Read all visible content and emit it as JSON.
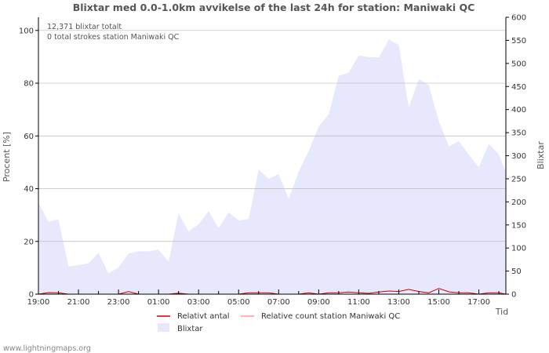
{
  "chart_data": {
    "type": "area",
    "title": "Blixtar med 0.0-1.0km avvikelse of the last 24h for station: Maniwaki QC",
    "ylabel_left": "Procent   [%]",
    "ylabel_right": "Blixtar",
    "xlabel": "Tid",
    "ylim_left": [
      0,
      105
    ],
    "ylim_right": [
      0,
      600
    ],
    "yticks_left": [
      0,
      20,
      40,
      60,
      80,
      100
    ],
    "yticks_right": [
      0,
      50,
      100,
      150,
      200,
      250,
      300,
      350,
      400,
      450,
      500,
      550,
      600
    ],
    "x_range_hours": [
      0,
      23.35
    ],
    "xticks": [
      {
        "h": 0,
        "label": "19:00"
      },
      {
        "h": 2,
        "label": "21:00"
      },
      {
        "h": 4,
        "label": "23:00"
      },
      {
        "h": 6,
        "label": "01:00"
      },
      {
        "h": 8,
        "label": "03:00"
      },
      {
        "h": 10,
        "label": "05:00"
      },
      {
        "h": 12,
        "label": "07:00"
      },
      {
        "h": 14,
        "label": "09:00"
      },
      {
        "h": 16,
        "label": "11:00"
      },
      {
        "h": 18,
        "label": "13:00"
      },
      {
        "h": 20,
        "label": "15:00"
      },
      {
        "h": 22,
        "label": "17:00"
      }
    ],
    "annotations": [
      "12,371 blixtar totalt",
      "0 total strokes station Maniwaki QC"
    ],
    "series": [
      {
        "name": "Blixtar",
        "axis": "right",
        "color": "#e8e8fc",
        "points": [
          [
            0,
            198
          ],
          [
            0.5,
            157
          ],
          [
            1,
            162
          ],
          [
            1.5,
            60
          ],
          [
            2,
            63
          ],
          [
            2.5,
            67
          ],
          [
            3,
            90
          ],
          [
            3.5,
            45
          ],
          [
            4,
            58
          ],
          [
            4.5,
            88
          ],
          [
            5,
            93
          ],
          [
            5.5,
            93
          ],
          [
            6,
            96
          ],
          [
            6.5,
            70
          ],
          [
            7,
            175
          ],
          [
            7.5,
            136
          ],
          [
            8,
            152
          ],
          [
            8.5,
            180
          ],
          [
            9,
            143
          ],
          [
            9.5,
            177
          ],
          [
            10,
            160
          ],
          [
            10.5,
            163
          ],
          [
            11,
            270
          ],
          [
            11.5,
            250
          ],
          [
            12,
            260
          ],
          [
            12.5,
            207
          ],
          [
            13,
            265
          ],
          [
            13.5,
            310
          ],
          [
            14,
            363
          ],
          [
            14.5,
            390
          ],
          [
            15,
            473
          ],
          [
            15.5,
            480
          ],
          [
            16,
            517
          ],
          [
            16.5,
            514
          ],
          [
            17,
            513
          ],
          [
            17.5,
            552
          ],
          [
            18,
            540
          ],
          [
            18.5,
            405
          ],
          [
            19,
            466
          ],
          [
            19.5,
            453
          ],
          [
            20,
            375
          ],
          [
            20.5,
            320
          ],
          [
            21,
            332
          ],
          [
            21.5,
            302
          ],
          [
            22,
            275
          ],
          [
            22.5,
            326
          ],
          [
            23,
            303
          ],
          [
            23.35,
            265
          ]
        ]
      },
      {
        "name": "Relativt antal",
        "axis": "left",
        "color": "#cc0000",
        "points": [
          [
            0,
            0
          ],
          [
            0.5,
            0.6
          ],
          [
            1,
            0.5
          ],
          [
            1.5,
            0
          ],
          [
            2,
            0
          ],
          [
            2.5,
            0
          ],
          [
            3,
            0
          ],
          [
            3.5,
            0
          ],
          [
            4,
            0
          ],
          [
            4.5,
            1
          ],
          [
            5,
            0
          ],
          [
            5.5,
            0
          ],
          [
            6,
            0
          ],
          [
            6.5,
            0
          ],
          [
            7,
            0.4
          ],
          [
            7.5,
            0
          ],
          [
            8,
            0
          ],
          [
            8.5,
            0
          ],
          [
            9,
            0
          ],
          [
            9.5,
            0
          ],
          [
            10,
            0
          ],
          [
            10.5,
            0.5
          ],
          [
            11,
            0.5
          ],
          [
            11.5,
            0.5
          ],
          [
            12,
            0
          ],
          [
            12.5,
            0
          ],
          [
            13,
            0
          ],
          [
            13.5,
            0.5
          ],
          [
            14,
            0
          ],
          [
            14.5,
            0.5
          ],
          [
            15,
            0.5
          ],
          [
            15.5,
            0.8
          ],
          [
            16,
            0.5
          ],
          [
            16.5,
            0.3
          ],
          [
            17,
            0.8
          ],
          [
            17.5,
            1.2
          ],
          [
            18,
            1
          ],
          [
            18.5,
            1.8
          ],
          [
            19,
            1
          ],
          [
            19.5,
            0.5
          ],
          [
            20,
            2.2
          ],
          [
            20.5,
            0.9
          ],
          [
            21,
            0.5
          ],
          [
            21.5,
            0.5
          ],
          [
            22,
            0
          ],
          [
            22.5,
            0.5
          ],
          [
            23,
            0.5
          ],
          [
            23.35,
            0
          ]
        ]
      }
    ],
    "legend": [
      {
        "label": "Relativt antal",
        "kind": "line",
        "color": "#cc0000"
      },
      {
        "label": "Relative count station Maniwaki QC",
        "kind": "line",
        "color": "#ff9999"
      },
      {
        "label": "Blixtar",
        "kind": "area",
        "color": "#e8e8fc"
      }
    ]
  },
  "footer": "www.lightningmaps.org"
}
